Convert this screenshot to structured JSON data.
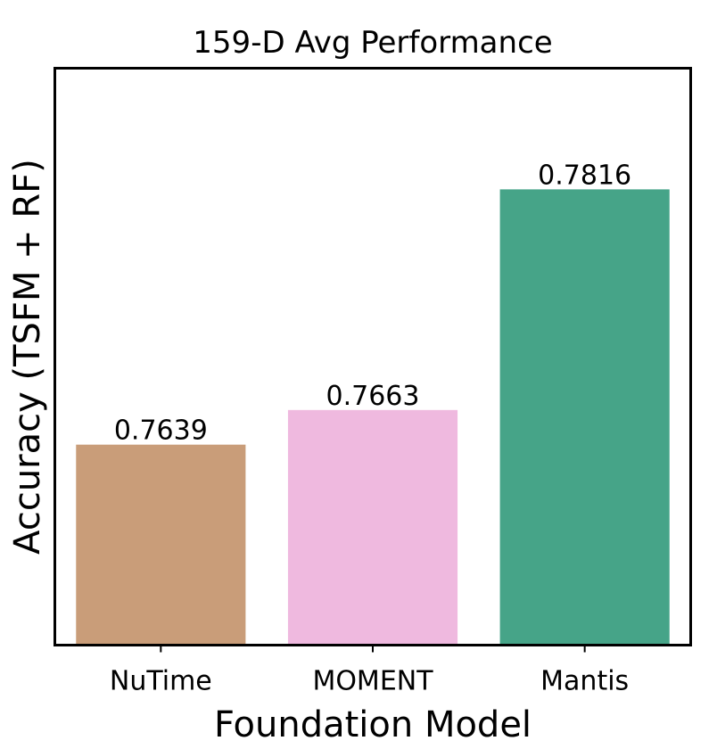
{
  "chart_data": {
    "type": "bar",
    "title": "159-D Avg Performance",
    "xlabel": "Foundation Model",
    "ylabel": "Accuracy (TSFM + RF)",
    "categories": [
      "NuTime",
      "MOMENT",
      "Mantis"
    ],
    "values": [
      0.7639,
      0.7663,
      0.7816
    ],
    "value_labels": [
      "0.7639",
      "0.7663",
      "0.7816"
    ],
    "colors": [
      "#c99d79",
      "#efb9df",
      "#46a488"
    ],
    "ylim": [
      0.75,
      0.79
    ],
    "grid": false,
    "legend": "none"
  }
}
